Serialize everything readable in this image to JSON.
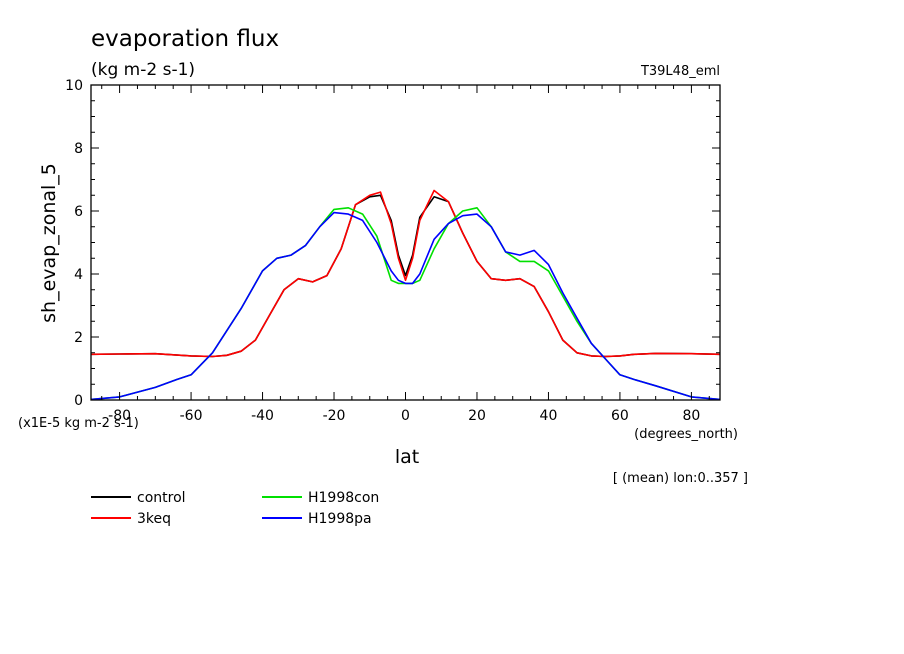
{
  "chart_data": {
    "type": "line",
    "title": "evaporation flux",
    "units_label": "(kg m-2 s-1)",
    "experiment": "T39L48_eml",
    "ylabel": "sh_evap_zonal_5",
    "xlabel": "lat",
    "x_units": "(degrees_north)",
    "y_scale_note": "(x1E-5 kg m-2 s-1)",
    "mean_note": "[ (mean) lon:0..357 ]",
    "xlim": [
      -88,
      88
    ],
    "ylim": [
      0,
      10
    ],
    "xticks": [
      -80,
      -60,
      -40,
      -20,
      0,
      20,
      40,
      60,
      80
    ],
    "yticks": [
      0,
      2,
      4,
      6,
      8,
      10
    ],
    "xtick_labels": [
      "-80",
      "-60",
      "-40",
      "-20",
      "0",
      "20",
      "40",
      "60",
      "80"
    ],
    "ytick_labels": [
      "0",
      "2",
      "4",
      "6",
      "8",
      "10"
    ],
    "legend_placement": "bottom-left, below plot",
    "series": [
      {
        "name": "control",
        "color": "#000000",
        "x": [
          -88,
          -80,
          -70,
          -60,
          -54,
          -50,
          -46,
          -42,
          -38,
          -34,
          -30,
          -26,
          -22,
          -18,
          -14,
          -10,
          -7,
          -4,
          -2,
          0,
          2,
          4,
          8,
          12,
          16,
          20,
          24,
          28,
          32,
          36,
          40,
          44,
          48,
          52,
          56,
          60,
          64,
          70,
          80,
          88
        ],
        "y": [
          1.45,
          1.46,
          1.47,
          1.4,
          1.38,
          1.42,
          1.55,
          1.9,
          2.7,
          3.5,
          3.85,
          3.75,
          3.95,
          4.8,
          6.2,
          6.45,
          6.5,
          5.7,
          4.6,
          3.95,
          4.6,
          5.8,
          6.45,
          6.3,
          5.3,
          4.4,
          3.85,
          3.8,
          3.85,
          3.6,
          2.8,
          1.9,
          1.5,
          1.4,
          1.38,
          1.4,
          1.45,
          1.48,
          1.47,
          1.45
        ]
      },
      {
        "name": "3keq",
        "color": "#ff0000",
        "x": [
          -88,
          -80,
          -70,
          -60,
          -54,
          -50,
          -46,
          -42,
          -38,
          -34,
          -30,
          -26,
          -22,
          -18,
          -14,
          -10,
          -7,
          -4,
          -2,
          0,
          2,
          4,
          8,
          12,
          16,
          20,
          24,
          28,
          32,
          36,
          40,
          44,
          48,
          52,
          56,
          60,
          64,
          70,
          80,
          88
        ],
        "y": [
          1.45,
          1.46,
          1.47,
          1.4,
          1.38,
          1.42,
          1.55,
          1.9,
          2.7,
          3.5,
          3.85,
          3.75,
          3.95,
          4.8,
          6.2,
          6.5,
          6.6,
          5.6,
          4.5,
          3.8,
          4.5,
          5.7,
          6.65,
          6.3,
          5.3,
          4.4,
          3.85,
          3.8,
          3.85,
          3.6,
          2.8,
          1.9,
          1.5,
          1.4,
          1.38,
          1.4,
          1.45,
          1.48,
          1.47,
          1.45
        ]
      },
      {
        "name": "H1998con",
        "color": "#00e000",
        "x": [
          -88,
          -80,
          -70,
          -64,
          -60,
          -54,
          -50,
          -46,
          -40,
          -36,
          -32,
          -28,
          -24,
          -20,
          -16,
          -12,
          -8,
          -4,
          -2,
          0,
          2,
          4,
          8,
          12,
          16,
          20,
          24,
          28,
          32,
          36,
          40,
          44,
          48,
          52,
          56,
          60,
          64,
          70,
          80,
          88
        ],
        "y": [
          0.02,
          0.1,
          0.4,
          0.65,
          0.8,
          1.5,
          2.2,
          2.9,
          4.1,
          4.5,
          4.6,
          4.9,
          5.5,
          6.05,
          6.1,
          5.9,
          5.2,
          3.8,
          3.7,
          3.7,
          3.7,
          3.8,
          4.8,
          5.6,
          6.0,
          6.1,
          5.5,
          4.7,
          4.4,
          4.4,
          4.1,
          3.3,
          2.5,
          1.8,
          1.3,
          0.8,
          0.65,
          0.45,
          0.1,
          0.02
        ]
      },
      {
        "name": "H1998pa",
        "color": "#0000ff",
        "x": [
          -88,
          -80,
          -70,
          -64,
          -60,
          -54,
          -50,
          -46,
          -40,
          -36,
          -32,
          -28,
          -24,
          -20,
          -16,
          -12,
          -8,
          -4,
          -2,
          0,
          2,
          4,
          8,
          12,
          16,
          20,
          24,
          28,
          32,
          36,
          40,
          44,
          48,
          52,
          56,
          60,
          64,
          70,
          80,
          88
        ],
        "y": [
          0.02,
          0.1,
          0.4,
          0.65,
          0.8,
          1.5,
          2.2,
          2.9,
          4.1,
          4.5,
          4.6,
          4.9,
          5.5,
          5.95,
          5.9,
          5.7,
          5.0,
          4.1,
          3.8,
          3.7,
          3.7,
          4.0,
          5.1,
          5.6,
          5.85,
          5.9,
          5.5,
          4.7,
          4.6,
          4.75,
          4.3,
          3.4,
          2.6,
          1.8,
          1.3,
          0.8,
          0.65,
          0.45,
          0.1,
          0.02
        ]
      }
    ]
  }
}
